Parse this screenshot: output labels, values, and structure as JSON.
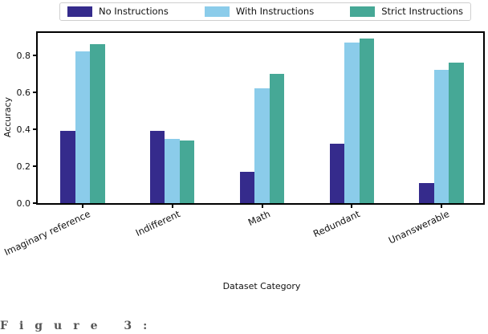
{
  "legend": {
    "items": [
      {
        "label": "No Instructions",
        "color": "#352b8c",
        "swatch_icon": "color-patch-icon"
      },
      {
        "label": "With Instructions",
        "color": "#8bccea",
        "swatch_icon": "color-patch-icon"
      },
      {
        "label": "Strict Instructions",
        "color": "#46a896",
        "swatch_icon": "color-patch-icon"
      }
    ]
  },
  "chart_data": {
    "type": "bar",
    "title": "",
    "xlabel": "Dataset Category",
    "ylabel": "Accuracy",
    "categories": [
      "Imaginary reference",
      "Indifferent",
      "Math",
      "Redundant",
      "Unanswerable"
    ],
    "series": [
      {
        "name": "No Instructions",
        "color": "#352b8c",
        "values": [
          0.39,
          0.39,
          0.17,
          0.32,
          0.11
        ]
      },
      {
        "name": "With Instructions",
        "color": "#8bccea",
        "values": [
          0.82,
          0.35,
          0.62,
          0.87,
          0.72
        ]
      },
      {
        "name": "Strict Instructions",
        "color": "#46a896",
        "values": [
          0.86,
          0.34,
          0.7,
          0.89,
          0.76
        ]
      }
    ],
    "ylim": [
      0.0,
      0.92
    ],
    "yticks": [
      "0.0",
      "0.2",
      "0.4",
      "0.6",
      "0.8"
    ],
    "ytick_values": [
      0.0,
      0.2,
      0.4,
      0.6,
      0.8
    ],
    "grid": false,
    "legend_position": "top-outside",
    "x_tick_label_rotation_deg": 25
  },
  "caption": {
    "cropped_text": "Figure 3:"
  }
}
